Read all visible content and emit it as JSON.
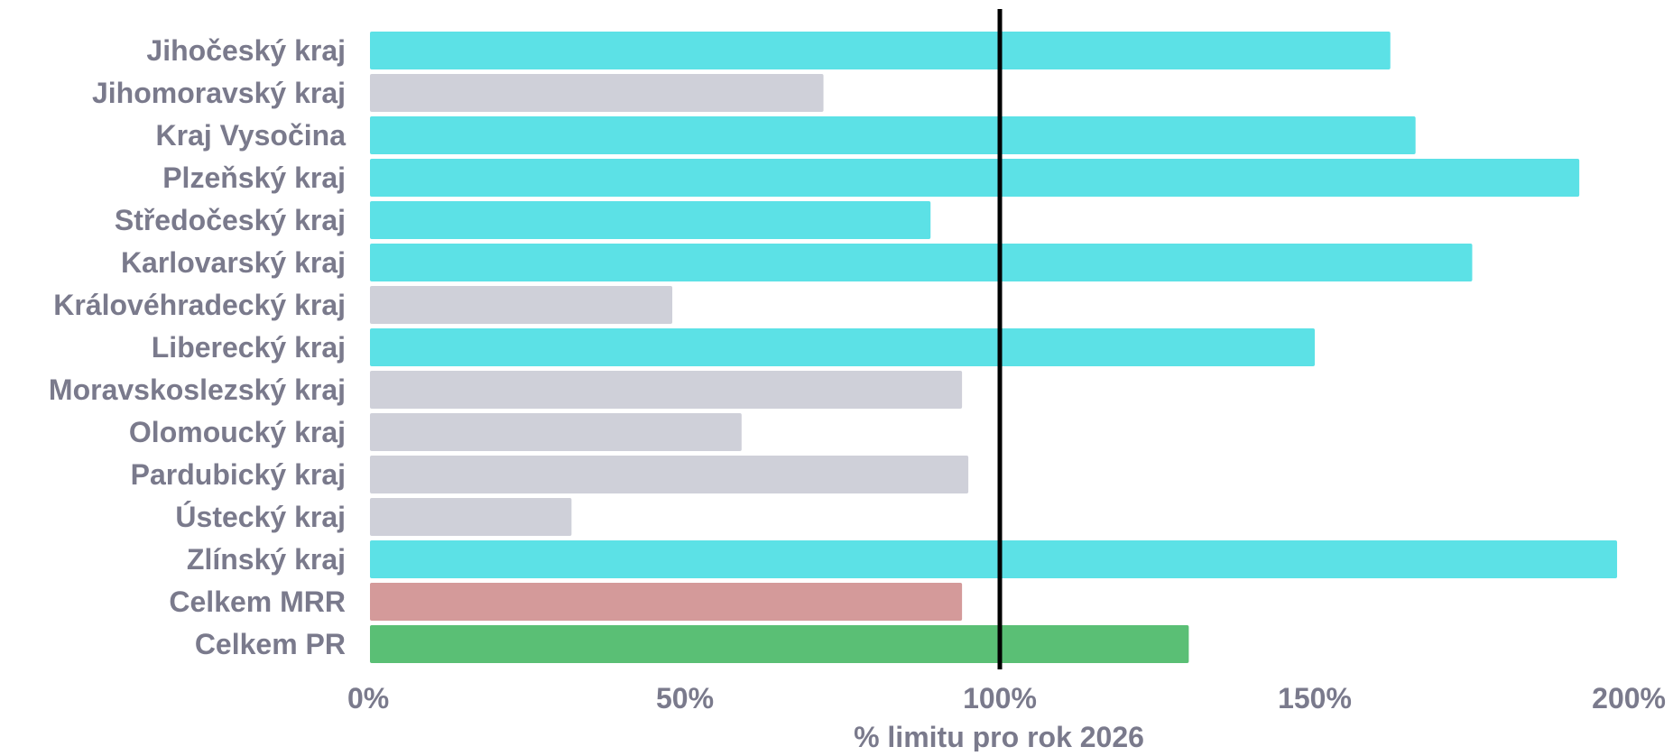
{
  "chart_data": {
    "type": "bar",
    "orientation": "horizontal",
    "categories": [
      "Jihočeský kraj",
      "Jihomoravský kraj",
      "Kraj Vysočina",
      "Plzeňský kraj",
      "Středočeský kraj",
      "Karlovarský kraj",
      "Královéhradecký kraj",
      "Liberecký kraj",
      "Moravskoslezský kraj",
      "Olomoucký kraj",
      "Pardubický kraj",
      "Ústecký kraj",
      "Zlínský kraj",
      "Celkem MRR",
      "Celkem PR"
    ],
    "values": [
      162,
      72,
      166,
      192,
      89,
      175,
      48,
      150,
      94,
      59,
      95,
      32,
      198,
      94,
      130
    ],
    "bar_colors": [
      "#5ce1e6",
      "#cfd0d9",
      "#5ce1e6",
      "#5ce1e6",
      "#5ce1e6",
      "#5ce1e6",
      "#cfd0d9",
      "#5ce1e6",
      "#cfd0d9",
      "#cfd0d9",
      "#cfd0d9",
      "#cfd0d9",
      "#5ce1e6",
      "#d49a9a",
      "#5abf75"
    ],
    "xlabel": "% limitu pro rok 2026",
    "ylabel": "",
    "title": "",
    "xlim": [
      0,
      200
    ],
    "x_ticks": [
      0,
      50,
      100,
      150,
      200
    ],
    "x_tick_labels": [
      "0%",
      "50%",
      "100%",
      "150%",
      "200%"
    ],
    "reference_line": 100,
    "grid": false,
    "colors": {
      "text": "#7a7a8c",
      "reference_line": "#000000"
    }
  }
}
